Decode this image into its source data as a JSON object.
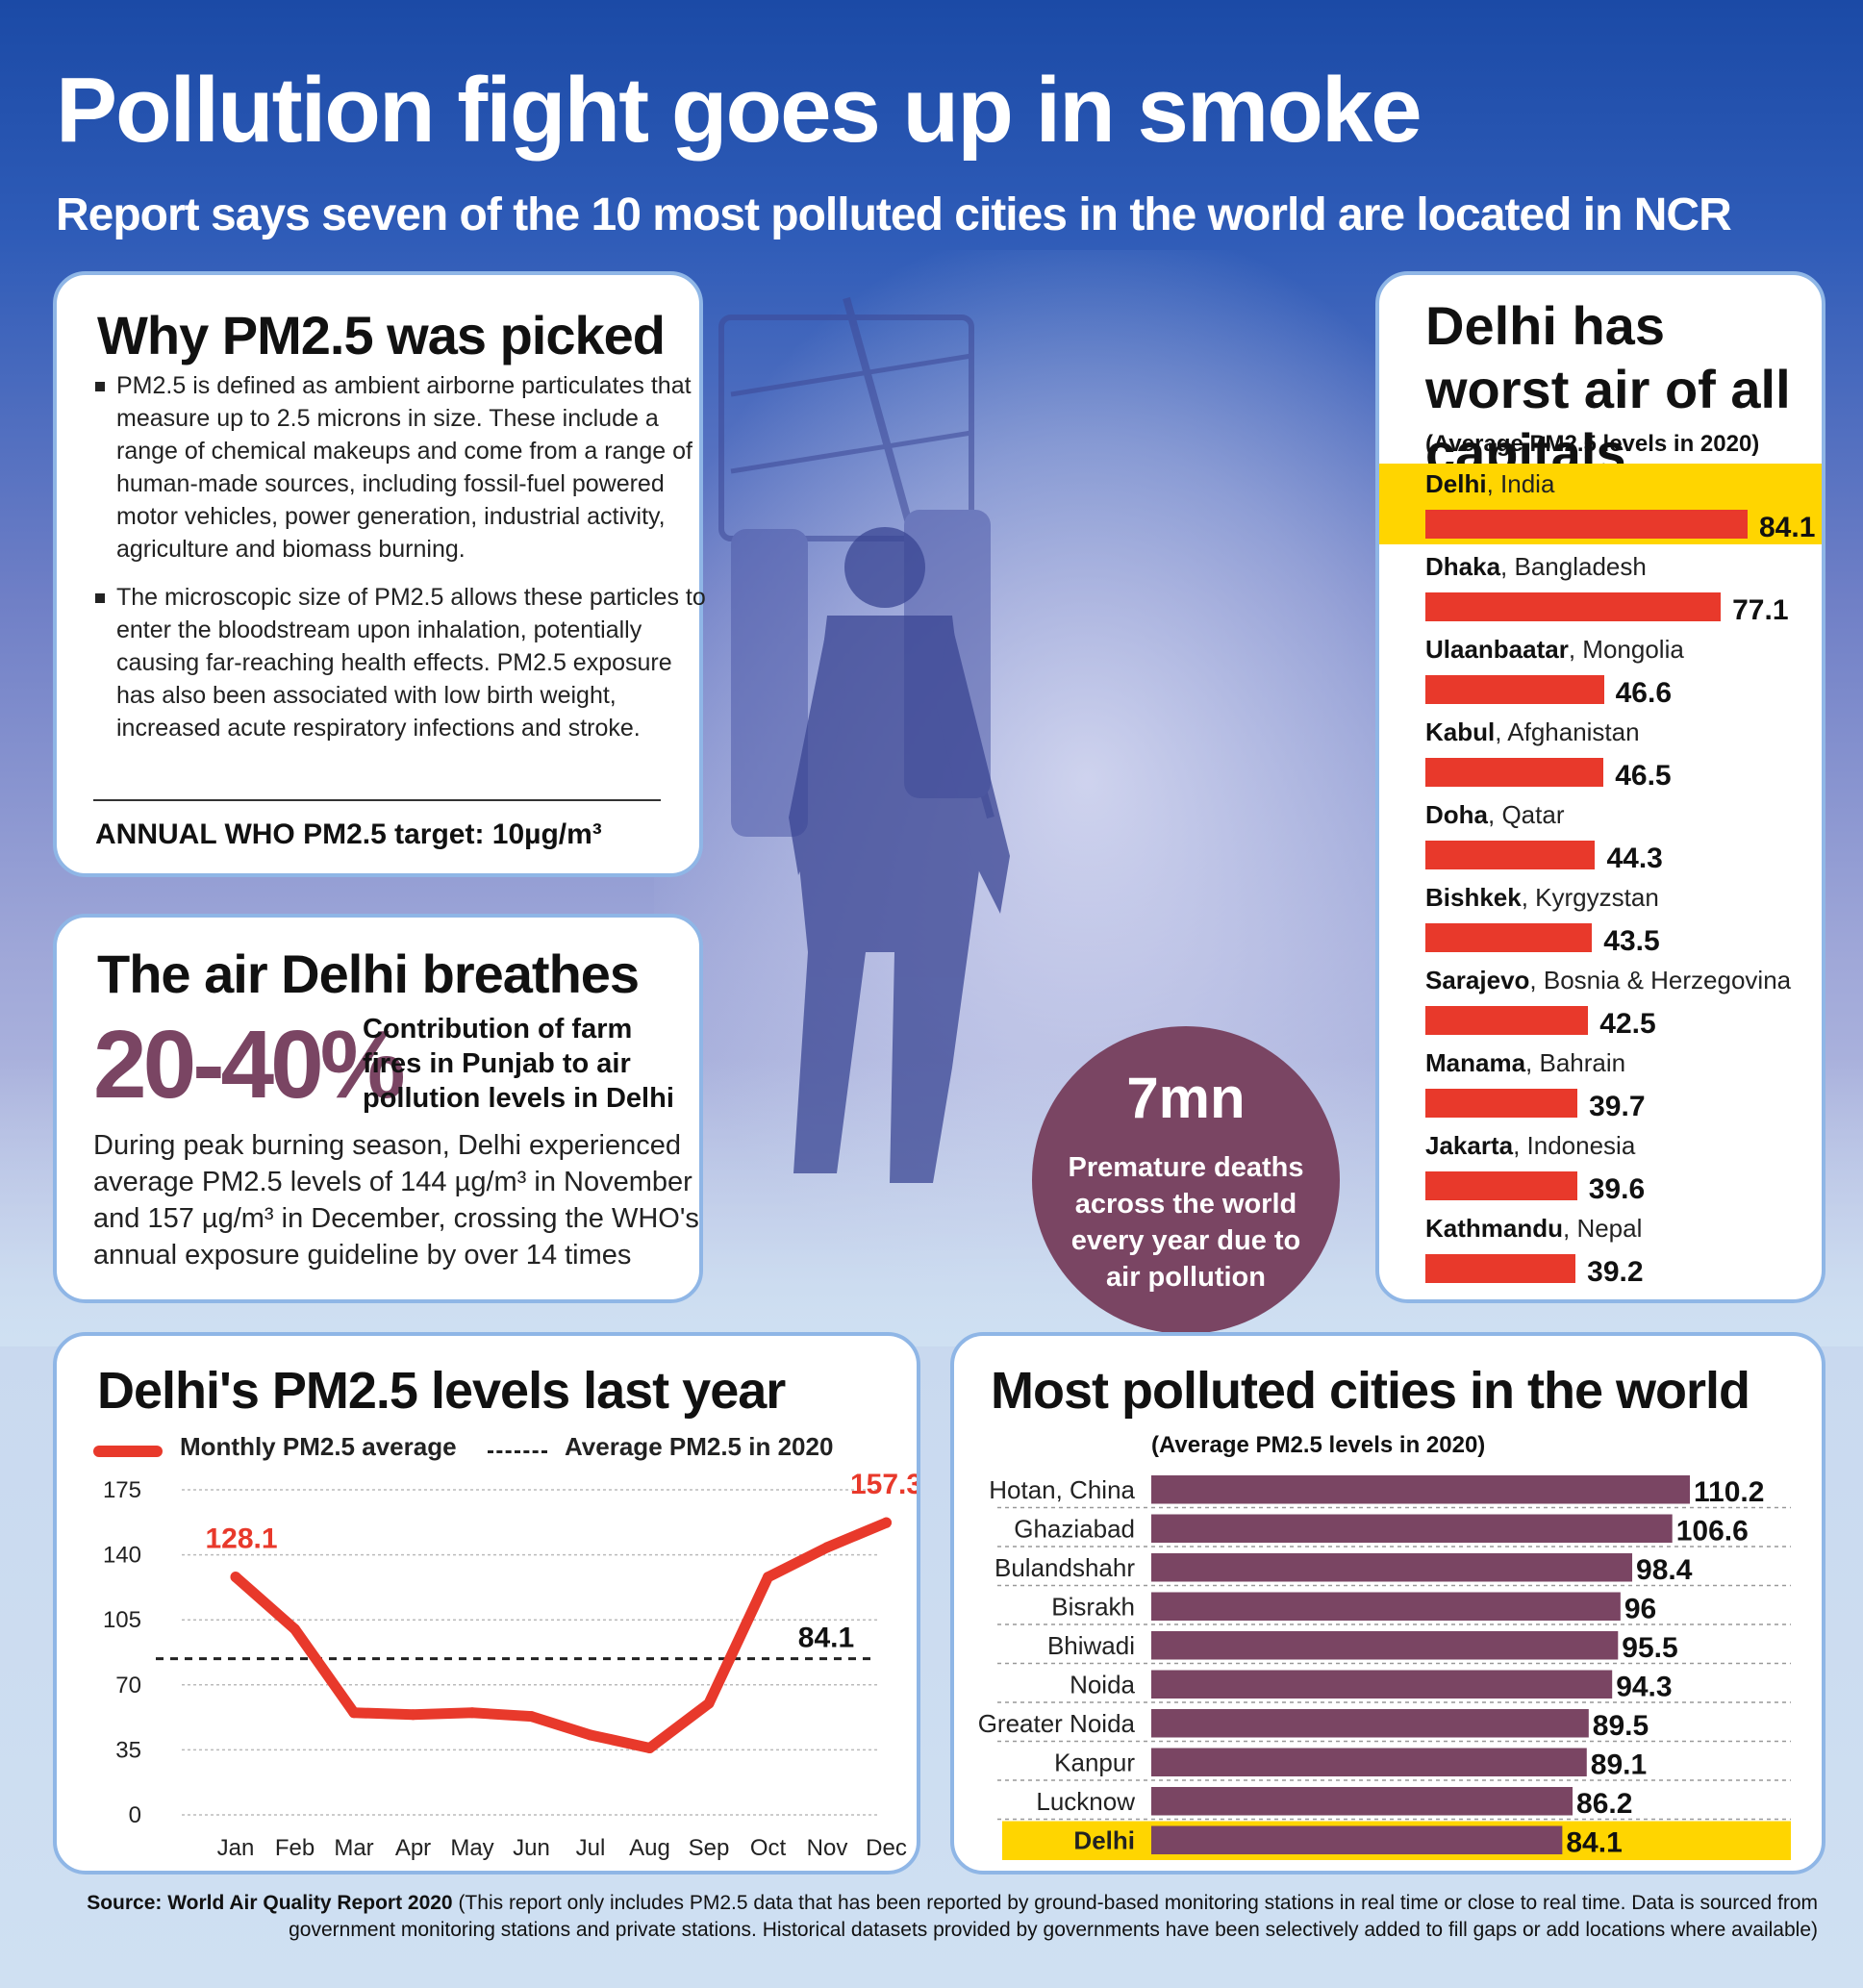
{
  "header": {
    "title": "Pollution fight goes up in smoke",
    "subtitle": "Report says seven of the 10 most polluted cities in the world are located in NCR"
  },
  "why_pm25": {
    "heading": "Why PM2.5 was picked",
    "bullets": [
      "PM2.5 is defined as ambient airborne particulates that measure up to 2.5 microns in size. These include a range of chemical makeups and come from a range of human-made sources, including fossil-fuel powered motor vehicles, power generation, industrial activity, agriculture and biomass burning.",
      "The microscopic size of PM2.5 allows these particles to enter the bloodstream upon inhalation, potentially causing far-reaching health effects. PM2.5 exposure has also been associated with low birth weight, increased acute respiratory infections and stroke."
    ],
    "who_target": "ANNUAL WHO PM2.5 target: 10µg/m³"
  },
  "air_delhi": {
    "heading": "The air Delhi breathes",
    "percent": "20-40%",
    "percent_note": "Contribution of farm fires in Punjab to air pollution levels in Delhi",
    "paragraph": "During peak burning season, Delhi experienced average PM2.5 levels of 144 µg/m³ in November and 157 µg/m³ in December, crossing the WHO's annual exposure guideline by over 14 times"
  },
  "deaths": {
    "value": "7mn",
    "text": "Premature deaths across the world every year due to air pollution"
  },
  "colors": {
    "red": "#e8392b",
    "plum": "#7a4563",
    "highlight": "#ffd500",
    "border": "#8fb6e6",
    "blue": "#1b4aa6"
  },
  "chart_data": [
    {
      "type": "bar",
      "title": "Delhi has worst air of all capitals",
      "subtitle": "(Average PM2.5 levels in 2020)",
      "categories": [
        "Delhi",
        "Dhaka",
        "Ulaanbaatar",
        "Kabul",
        "Doha",
        "Bishkek",
        "Sarajevo",
        "Manama",
        "Jakarta",
        "Kathmandu"
      ],
      "countries": [
        "India",
        "Bangladesh",
        "Mongolia",
        "Afghanistan",
        "Qatar",
        "Kyrgyzstan",
        "Bosnia & Herzegovina",
        "Bahrain",
        "Indonesia",
        "Nepal"
      ],
      "values": [
        84.1,
        77.1,
        46.6,
        46.5,
        44.3,
        43.5,
        42.5,
        39.7,
        39.6,
        39.2
      ],
      "value_labels": [
        "84.1",
        "77.1",
        "46.6",
        "46.5",
        "44.3",
        "43.5",
        "42.5",
        "39.7",
        "39.6",
        "39.2"
      ],
      "highlight": "Delhi"
    },
    {
      "type": "line",
      "title": "Delhi's PM2.5 levels last year",
      "x": [
        "Jan",
        "Feb",
        "Mar",
        "Apr",
        "May",
        "Jun",
        "Jul",
        "Aug",
        "Sep",
        "Oct",
        "Nov",
        "Dec"
      ],
      "series": [
        {
          "name": "Monthly PM2.5 average",
          "values": [
            128.1,
            100,
            55,
            54,
            55,
            53,
            43,
            36,
            60,
            128,
            144,
            157.3
          ]
        }
      ],
      "reference_line": {
        "name": "Average PM2.5 in 2020",
        "value": 84.1,
        "label": "84.1"
      },
      "annotations": [
        {
          "month": "Jan",
          "label": "128.1"
        },
        {
          "month": "Dec",
          "label": "157.3"
        }
      ],
      "yticks": [
        0,
        35,
        70,
        105,
        140,
        175
      ],
      "ylim": [
        0,
        175
      ],
      "grid": true
    },
    {
      "type": "bar",
      "title": "Most polluted cities in the world",
      "subtitle": "(Average PM2.5 levels in 2020)",
      "categories": [
        "Hotan, China",
        "Ghaziabad",
        "Bulandshahr",
        "Bisrakh",
        "Bhiwadi",
        "Noida",
        "Greater Noida",
        "Kanpur",
        "Lucknow",
        "Delhi"
      ],
      "values": [
        110.2,
        106.6,
        98.4,
        96,
        95.5,
        94.3,
        89.5,
        89.1,
        86.2,
        84.1
      ],
      "value_labels": [
        "110.2",
        "106.6",
        "98.4",
        "96",
        "95.5",
        "94.3",
        "89.5",
        "89.1",
        "86.2",
        "84.1"
      ],
      "highlight": "Delhi"
    }
  ],
  "source": {
    "label": "Source: World Air Quality Report 2020",
    "text": " (This report only includes PM2.5 data that has been reported by ground-based monitoring stations in real time or close to real time. Data is sourced from government monitoring stations and private stations. Historical datasets provided by governments have been selectively added to fill gaps or add locations where available)"
  }
}
